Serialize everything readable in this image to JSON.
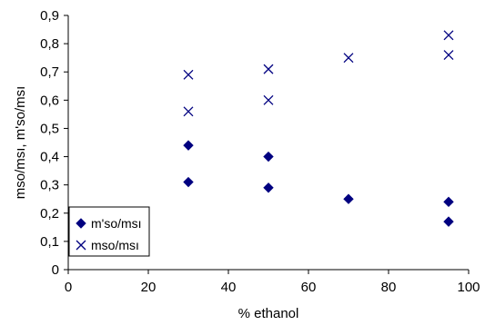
{
  "chart_data": {
    "type": "scatter",
    "xlabel": "% ethanol",
    "ylabel": "mso/msı, m'so/msı",
    "xlim": [
      0,
      100
    ],
    "ylim": [
      0,
      0.9
    ],
    "x_ticks": [
      "0",
      "20",
      "40",
      "60",
      "80",
      "100"
    ],
    "y_ticks": [
      "0",
      "0,1",
      "0,2",
      "0,3",
      "0,4",
      "0,5",
      "0,6",
      "0,7",
      "0,8",
      "0,9"
    ],
    "grid": false,
    "legend_position": "bottom-left",
    "series": [
      {
        "name": "m'so/msı",
        "marker": "diamond",
        "color": "#000080",
        "points": [
          {
            "x": 30,
            "y": 0.44
          },
          {
            "x": 30,
            "y": 0.31
          },
          {
            "x": 50,
            "y": 0.4
          },
          {
            "x": 50,
            "y": 0.29
          },
          {
            "x": 70,
            "y": 0.25
          },
          {
            "x": 95,
            "y": 0.24
          },
          {
            "x": 95,
            "y": 0.17
          }
        ]
      },
      {
        "name": "mso/msı",
        "marker": "x",
        "color": "#000080",
        "points": [
          {
            "x": 30,
            "y": 0.69
          },
          {
            "x": 30,
            "y": 0.56
          },
          {
            "x": 50,
            "y": 0.71
          },
          {
            "x": 50,
            "y": 0.6
          },
          {
            "x": 70,
            "y": 0.75
          },
          {
            "x": 95,
            "y": 0.83
          },
          {
            "x": 95,
            "y": 0.76
          }
        ]
      }
    ]
  }
}
